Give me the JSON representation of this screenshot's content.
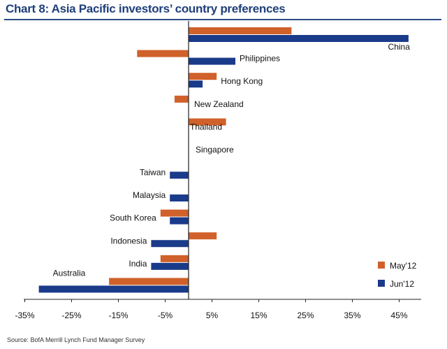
{
  "title": "Chart 8: Asia Pacific investors’ country preferences",
  "source": "Source: BofA Merrill Lynch Fund Manager Survey",
  "colors": {
    "may": "#d0612a",
    "jun": "#1a3a8a",
    "title": "#1f3f7a",
    "axis": "#222222"
  },
  "chart_data": {
    "type": "bar",
    "orientation": "horizontal",
    "title": "Chart 8: Asia Pacific investors’ country preferences",
    "categories": [
      "China",
      "Philippines",
      "Hong Kong",
      "New Zealand",
      "Thailand",
      "Singapore",
      "Taiwan",
      "Malaysia",
      "South Korea",
      "Indonesia",
      "India",
      "Australia"
    ],
    "series": [
      {
        "name": "May'12",
        "values": [
          22,
          -11,
          6,
          -3,
          8,
          0,
          0,
          0,
          -6,
          6,
          -6,
          -17
        ]
      },
      {
        "name": "Jun'12",
        "values": [
          47,
          10,
          3,
          0,
          0,
          0,
          -4,
          -4,
          -4,
          -8,
          -8,
          -32
        ]
      }
    ],
    "xlim": [
      -35,
      50
    ],
    "xticks": [
      "-35%",
      "-25%",
      "-15%",
      "-5%",
      "5%",
      "15%",
      "25%",
      "35%",
      "45%"
    ],
    "legend": "bottom-right",
    "grid": false
  }
}
